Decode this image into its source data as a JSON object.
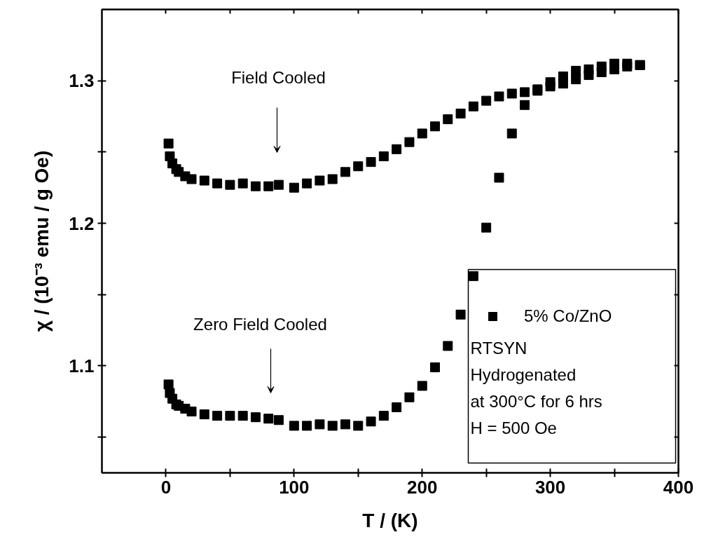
{
  "chart_data": {
    "type": "scatter",
    "xlabel": "T / (K)",
    "ylabel": "χ / (10⁻³ emu / g Oe)",
    "xlim": [
      -50,
      400
    ],
    "ylim": [
      1.025,
      1.35
    ],
    "xticks": [
      0,
      {
        "value": 50,
        "label": null
      },
      100,
      {
        "value": 150,
        "label": null
      },
      200,
      {
        "value": 250,
        "label": null
      },
      300,
      {
        "value": 350,
        "label": null
      },
      400
    ],
    "yticks": [
      {
        "value": 1.05,
        "label": null
      },
      1.1,
      {
        "value": 1.15,
        "label": null
      },
      1.2,
      {
        "value": 1.25,
        "label": null
      },
      1.3
    ],
    "marker": "square",
    "grid": false,
    "legend": "bottom right",
    "series": [
      {
        "name": "5% Co/ZnO",
        "color": "#000000",
        "x": [
          2,
          3,
          5,
          8,
          10,
          15,
          20,
          30,
          40,
          50,
          60,
          70,
          80,
          88,
          100,
          110,
          120,
          130,
          140,
          150,
          160,
          170,
          180,
          190,
          200,
          210,
          220,
          230,
          240,
          250,
          260,
          270,
          280,
          290,
          300,
          310,
          320,
          330,
          340,
          350,
          360,
          370,
          2,
          3,
          5,
          8,
          10,
          15,
          20,
          30,
          40,
          50,
          60,
          70,
          80,
          88,
          100,
          110,
          120,
          130,
          140,
          150,
          160,
          170,
          180,
          190,
          200,
          210,
          220,
          230,
          240,
          250,
          260,
          270,
          280,
          290,
          300,
          310,
          320,
          330,
          340,
          350,
          360,
          370
        ],
        "values": [
          1.087,
          1.081,
          1.077,
          1.073,
          1.072,
          1.07,
          1.068,
          1.066,
          1.065,
          1.065,
          1.065,
          1.064,
          1.063,
          1.062,
          1.058,
          1.058,
          1.059,
          1.058,
          1.059,
          1.058,
          1.061,
          1.065,
          1.071,
          1.078,
          1.086,
          1.099,
          1.114,
          1.136,
          1.163,
          1.197,
          1.232,
          1.263,
          1.283,
          1.293,
          1.296,
          1.298,
          1.301,
          1.304,
          1.306,
          1.308,
          1.31,
          1.311,
          1.256,
          1.247,
          1.242,
          1.238,
          1.236,
          1.233,
          1.231,
          1.23,
          1.228,
          1.227,
          1.228,
          1.226,
          1.226,
          1.227,
          1.225,
          1.228,
          1.23,
          1.231,
          1.236,
          1.24,
          1.243,
          1.247,
          1.252,
          1.257,
          1.263,
          1.268,
          1.273,
          1.277,
          1.282,
          1.286,
          1.289,
          1.291,
          1.292,
          1.294,
          1.299,
          1.303,
          1.307,
          1.308,
          1.31,
          1.312,
          1.312,
          1.311
        ]
      }
    ],
    "annotations": [
      "Field Cooled",
      "Zero Field Cooled",
      "RTSYN",
      "Hydrogenated",
      "at 300°C for 6 hrs",
      "H = 500 Oe"
    ]
  }
}
